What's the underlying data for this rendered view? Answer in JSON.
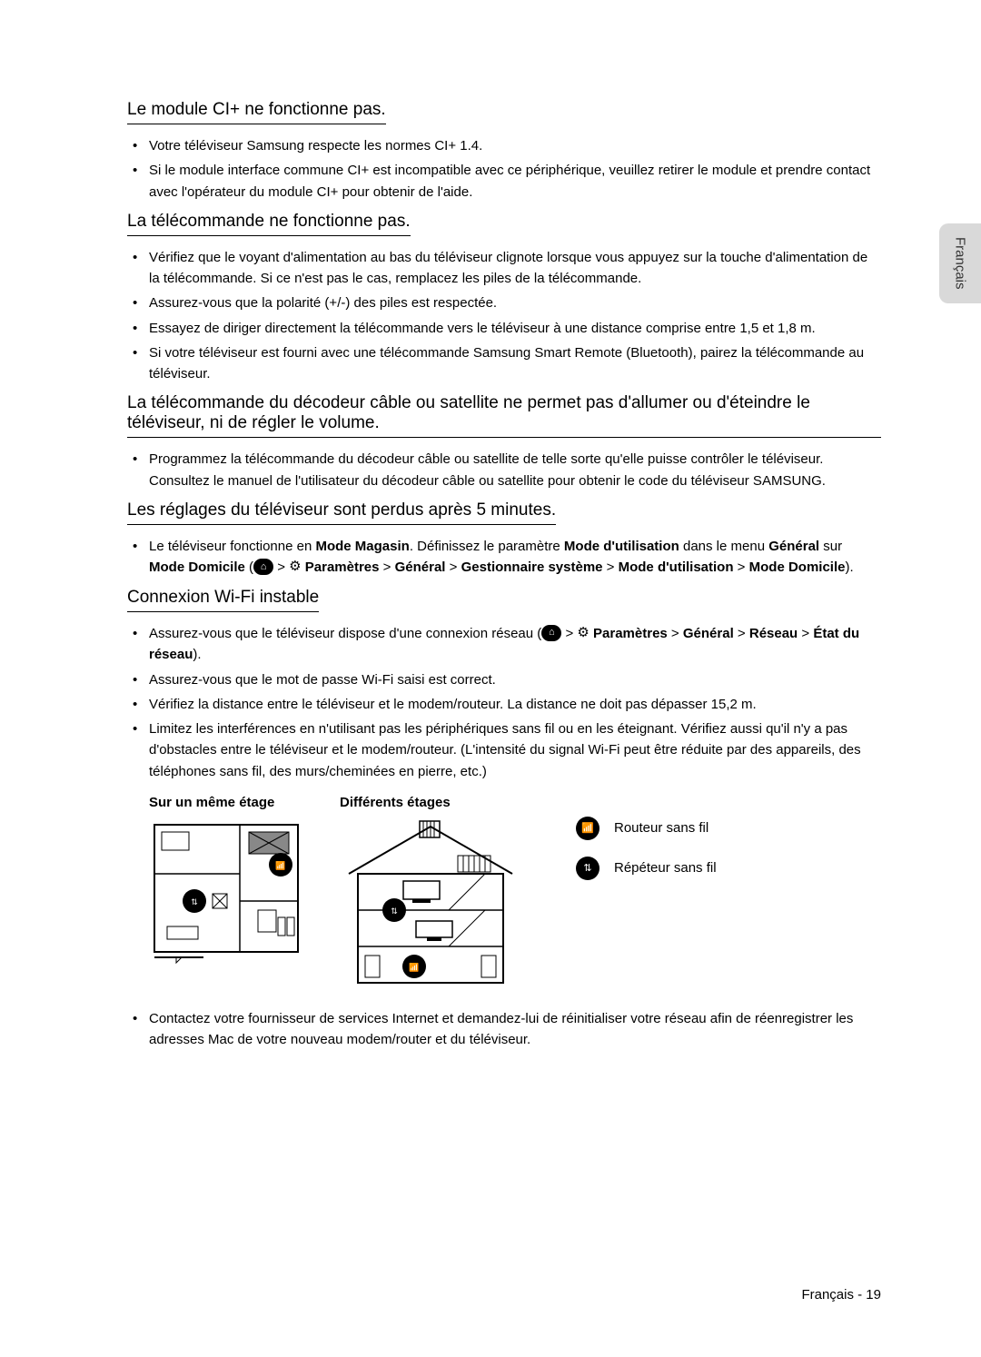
{
  "sideTab": "Français",
  "sections": [
    {
      "title": "Le module CI+ ne fonctionne pas.",
      "items": [
        {
          "text": "Votre téléviseur Samsung respecte les normes CI+ 1.4."
        },
        {
          "text": "Si le module interface commune CI+ est incompatible avec ce périphérique, veuillez retirer le module et prendre contact avec l'opérateur du module CI+ pour obtenir de l'aide."
        }
      ]
    },
    {
      "title": "La télécommande ne fonctionne pas.",
      "items": [
        {
          "text": "Vérifiez que le voyant d'alimentation au bas du téléviseur clignote lorsque vous appuyez sur la touche d'alimentation de la télécommande. Si ce n'est pas le cas, remplacez les piles de la télécommande."
        },
        {
          "text": "Assurez-vous que la polarité (+/-) des piles est respectée."
        },
        {
          "text": "Essayez de diriger directement la télécommande vers le téléviseur à une distance comprise entre 1,5 et 1,8 m."
        },
        {
          "text": "Si votre téléviseur est fourni avec une télécommande Samsung Smart Remote (Bluetooth), pairez la télécommande au téléviseur."
        }
      ]
    },
    {
      "title": "La télécommande du décodeur câble ou satellite ne permet pas d'allumer ou d'éteindre le téléviseur, ni de régler le volume.",
      "items": [
        {
          "text": "Programmez la télécommande du décodeur câble ou satellite de telle sorte qu'elle puisse contrôler le téléviseur. Consultez le manuel de l'utilisateur du décodeur câble ou satellite pour obtenir le code du téléviseur SAMSUNG."
        }
      ]
    },
    {
      "title": "Les réglages du téléviseur sont perdus après 5 minutes.",
      "items": [
        {
          "parts": [
            {
              "t": "Le téléviseur fonctionne en "
            },
            {
              "t": "Mode Magasin",
              "b": true
            },
            {
              "t": ". Définissez le paramètre "
            },
            {
              "t": "Mode d'utilisation",
              "b": true
            },
            {
              "t": " dans le menu "
            },
            {
              "t": "Général",
              "b": true
            },
            {
              "t": " sur "
            },
            {
              "t": "Mode Domicile",
              "b": true
            },
            {
              "t": " ("
            },
            {
              "icon": "home"
            },
            {
              "t": " > "
            },
            {
              "icon": "gear"
            },
            {
              "t": " "
            },
            {
              "t": "Paramètres",
              "b": true
            },
            {
              "t": " > "
            },
            {
              "t": "Général",
              "b": true
            },
            {
              "t": " > "
            },
            {
              "t": "Gestionnaire système",
              "b": true
            },
            {
              "t": " > "
            },
            {
              "t": "Mode d'utilisation",
              "b": true
            },
            {
              "t": " > "
            },
            {
              "t": "Mode Domicile",
              "b": true
            },
            {
              "t": ")."
            }
          ]
        }
      ]
    },
    {
      "title": "Connexion Wi-Fi instable",
      "items": [
        {
          "parts": [
            {
              "t": "Assurez-vous que le téléviseur dispose d'une connexion réseau ("
            },
            {
              "icon": "home"
            },
            {
              "t": " > "
            },
            {
              "icon": "gear"
            },
            {
              "t": " "
            },
            {
              "t": "Paramètres",
              "b": true
            },
            {
              "t": " > "
            },
            {
              "t": "Général",
              "b": true
            },
            {
              "t": " > "
            },
            {
              "t": "Réseau",
              "b": true
            },
            {
              "t": " > "
            },
            {
              "t": "État du réseau",
              "b": true
            },
            {
              "t": ")."
            }
          ]
        },
        {
          "text": "Assurez-vous que le mot de passe Wi-Fi saisi est correct."
        },
        {
          "text": "Vérifiez la distance entre le téléviseur et le modem/routeur. La distance ne doit pas dépasser 15,2 m."
        },
        {
          "text": "Limitez les interférences en n'utilisant pas les périphériques sans fil ou en les éteignant. Vérifiez aussi qu'il n'y a pas d'obstacles entre le téléviseur et le modem/routeur. (L'intensité du signal Wi-Fi peut être réduite par des appareils, des téléphones sans fil, des murs/cheminées en pierre, etc.)"
        }
      ],
      "diagrams": {
        "col1_label": "Sur un même étage",
        "col2_label": "Différents étages",
        "legend": {
          "router": "Routeur sans fil",
          "repeater": "Répéteur sans fil"
        }
      },
      "after_items": [
        {
          "text": "Contactez votre fournisseur de services Internet et demandez-lui de réinitialiser votre réseau afin de réenregistrer les adresses Mac de votre nouveau modem/router et du téléviseur."
        }
      ]
    }
  ],
  "footer": "Français - 19",
  "colors": {
    "text": "#000000",
    "bg": "#ffffff",
    "tab": "#d9d9d9"
  }
}
